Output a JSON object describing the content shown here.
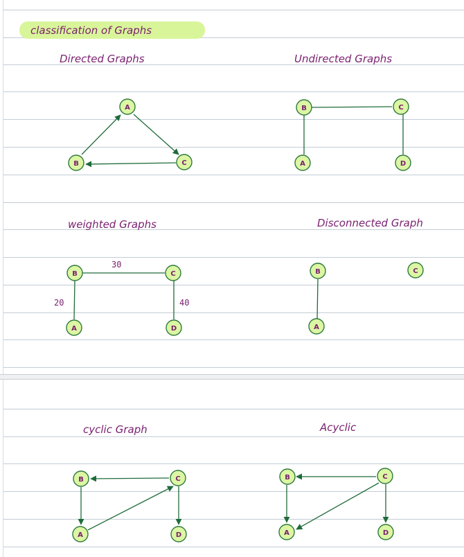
{
  "title": "classification of Graphs",
  "colors": {
    "node_fill": "#dcf6a4",
    "node_stroke": "#2f7a3c",
    "edge": "#1f6b3a",
    "text": "#7a1f6f",
    "highlight": "#d9f59a"
  },
  "sections": {
    "directed": {
      "title": "Directed Graphs",
      "nodes": {
        "A": "A",
        "B": "B",
        "C": "C"
      }
    },
    "undirected": {
      "title": "Undirected Graphs",
      "nodes": {
        "A": "A",
        "B": "B",
        "C": "C",
        "D": "D"
      }
    },
    "weighted": {
      "title": "weighted Graphs",
      "nodes": {
        "A": "A",
        "B": "B",
        "C": "C",
        "D": "D"
      },
      "weights": {
        "BC": "30",
        "BA": "20",
        "CD": "40"
      }
    },
    "disconnected": {
      "title": "Disconnected Graph",
      "nodes": {
        "A": "A",
        "B": "B",
        "C": "C"
      }
    },
    "cyclic": {
      "title": "cyclic Graph",
      "nodes": {
        "A": "A",
        "B": "B",
        "C": "C",
        "D": "D"
      }
    },
    "acyclic": {
      "title": "Acyclic",
      "nodes": {
        "A": "A",
        "B": "B",
        "C": "C",
        "D": "D"
      }
    }
  }
}
